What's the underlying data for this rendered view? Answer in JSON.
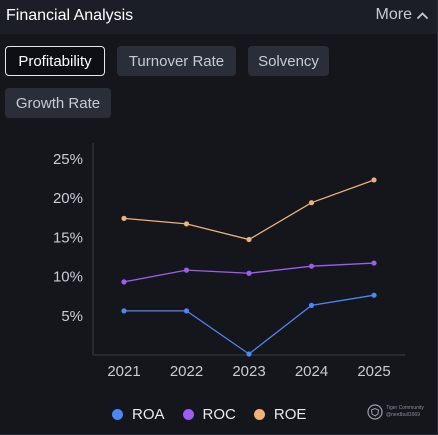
{
  "header": {
    "title": "Financial Analysis",
    "more_label": "More"
  },
  "tabs": [
    {
      "label": "Profitability",
      "active": true
    },
    {
      "label": "Turnover Rate",
      "active": false
    },
    {
      "label": "Solvency",
      "active": false
    },
    {
      "label": "Growth Rate",
      "active": false
    }
  ],
  "chart_data": {
    "type": "line",
    "categories": [
      "2021",
      "2022",
      "2023",
      "2024",
      "2025"
    ],
    "y_ticks": [
      "25%",
      "20%",
      "15%",
      "10%",
      "5%"
    ],
    "ylim": [
      0,
      25
    ],
    "series": [
      {
        "name": "ROA",
        "color": "#4d86f5",
        "values": [
          5.5,
          5.5,
          0,
          6.2,
          7.5
        ]
      },
      {
        "name": "ROC",
        "color": "#a05cf2",
        "values": [
          9.2,
          10.7,
          10.3,
          11.2,
          11.6
        ]
      },
      {
        "name": "ROE",
        "color": "#f0b07a",
        "values": [
          17.3,
          16.6,
          14.6,
          19.3,
          22.2
        ]
      }
    ]
  },
  "watermark": {
    "line1": "Tiger Community",
    "line2": "@nerdbull1669"
  }
}
